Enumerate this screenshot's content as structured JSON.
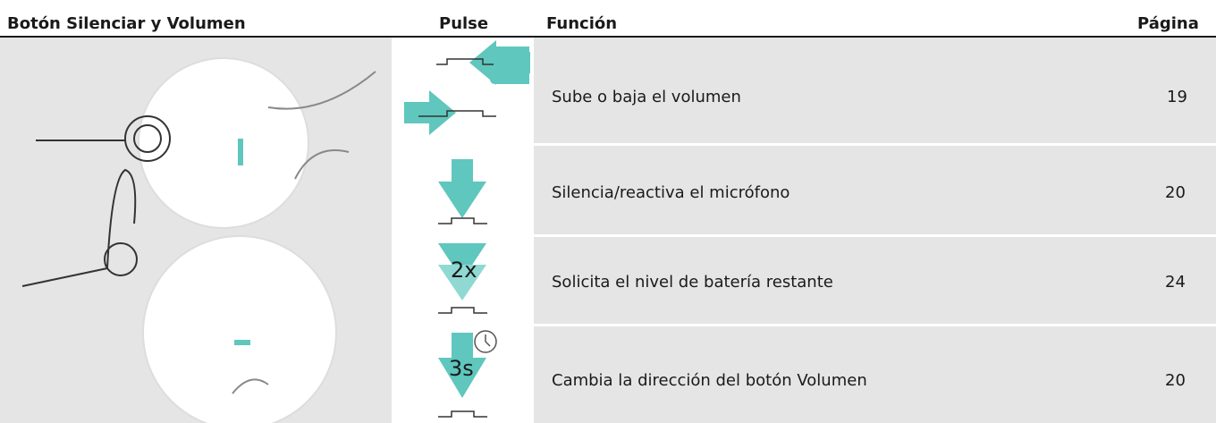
{
  "header": {
    "columns": [
      "Botón Silenciar y Volumen",
      "Pulse",
      "Función",
      "Página"
    ]
  },
  "table": {
    "rows": [
      {
        "function": "Sube o baja el volumen",
        "page": "19"
      },
      {
        "icon_label": "",
        "function": "Silencia/reactiva el micrófono",
        "page": "20"
      },
      {
        "icon_label": "2x",
        "function": "Solicita el nivel de batería restante",
        "page": "24"
      },
      {
        "icon_label": "3s",
        "function": "Cambia la dirección del botón Volumen",
        "page": "20"
      }
    ]
  }
}
